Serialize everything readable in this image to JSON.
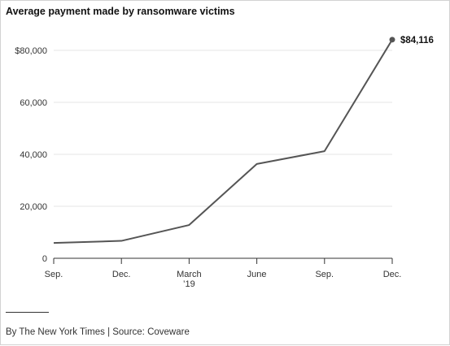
{
  "chart_data": {
    "type": "line",
    "title": "Average payment made by ransomware victims",
    "x": [
      "Sep.",
      "Dec.",
      "March\n’19",
      "June",
      "Sep.",
      "Dec."
    ],
    "x_tick_labels": [
      [
        "Sep."
      ],
      [
        "Dec."
      ],
      [
        "March",
        "’19"
      ],
      [
        "June"
      ],
      [
        "Sep."
      ],
      [
        "Dec."
      ]
    ],
    "series": [
      {
        "values": [
          5900,
          6700,
          12800,
          36300,
          41200,
          84116
        ]
      }
    ],
    "y_ticks": [
      0,
      20000,
      40000,
      60000,
      80000
    ],
    "y_tick_labels": [
      "0",
      "20,000",
      "40,000",
      "60,000",
      "$80,000"
    ],
    "ylim": [
      0,
      86000
    ],
    "end_value_label": "$84,116",
    "grid": true,
    "xlabel": "",
    "ylabel": ""
  },
  "credit": "By The New York Times | Source: Coveware",
  "colors": {
    "line": "#555555",
    "grid": "#e6e6e6",
    "axis": "#333333",
    "text": "#333333"
  }
}
